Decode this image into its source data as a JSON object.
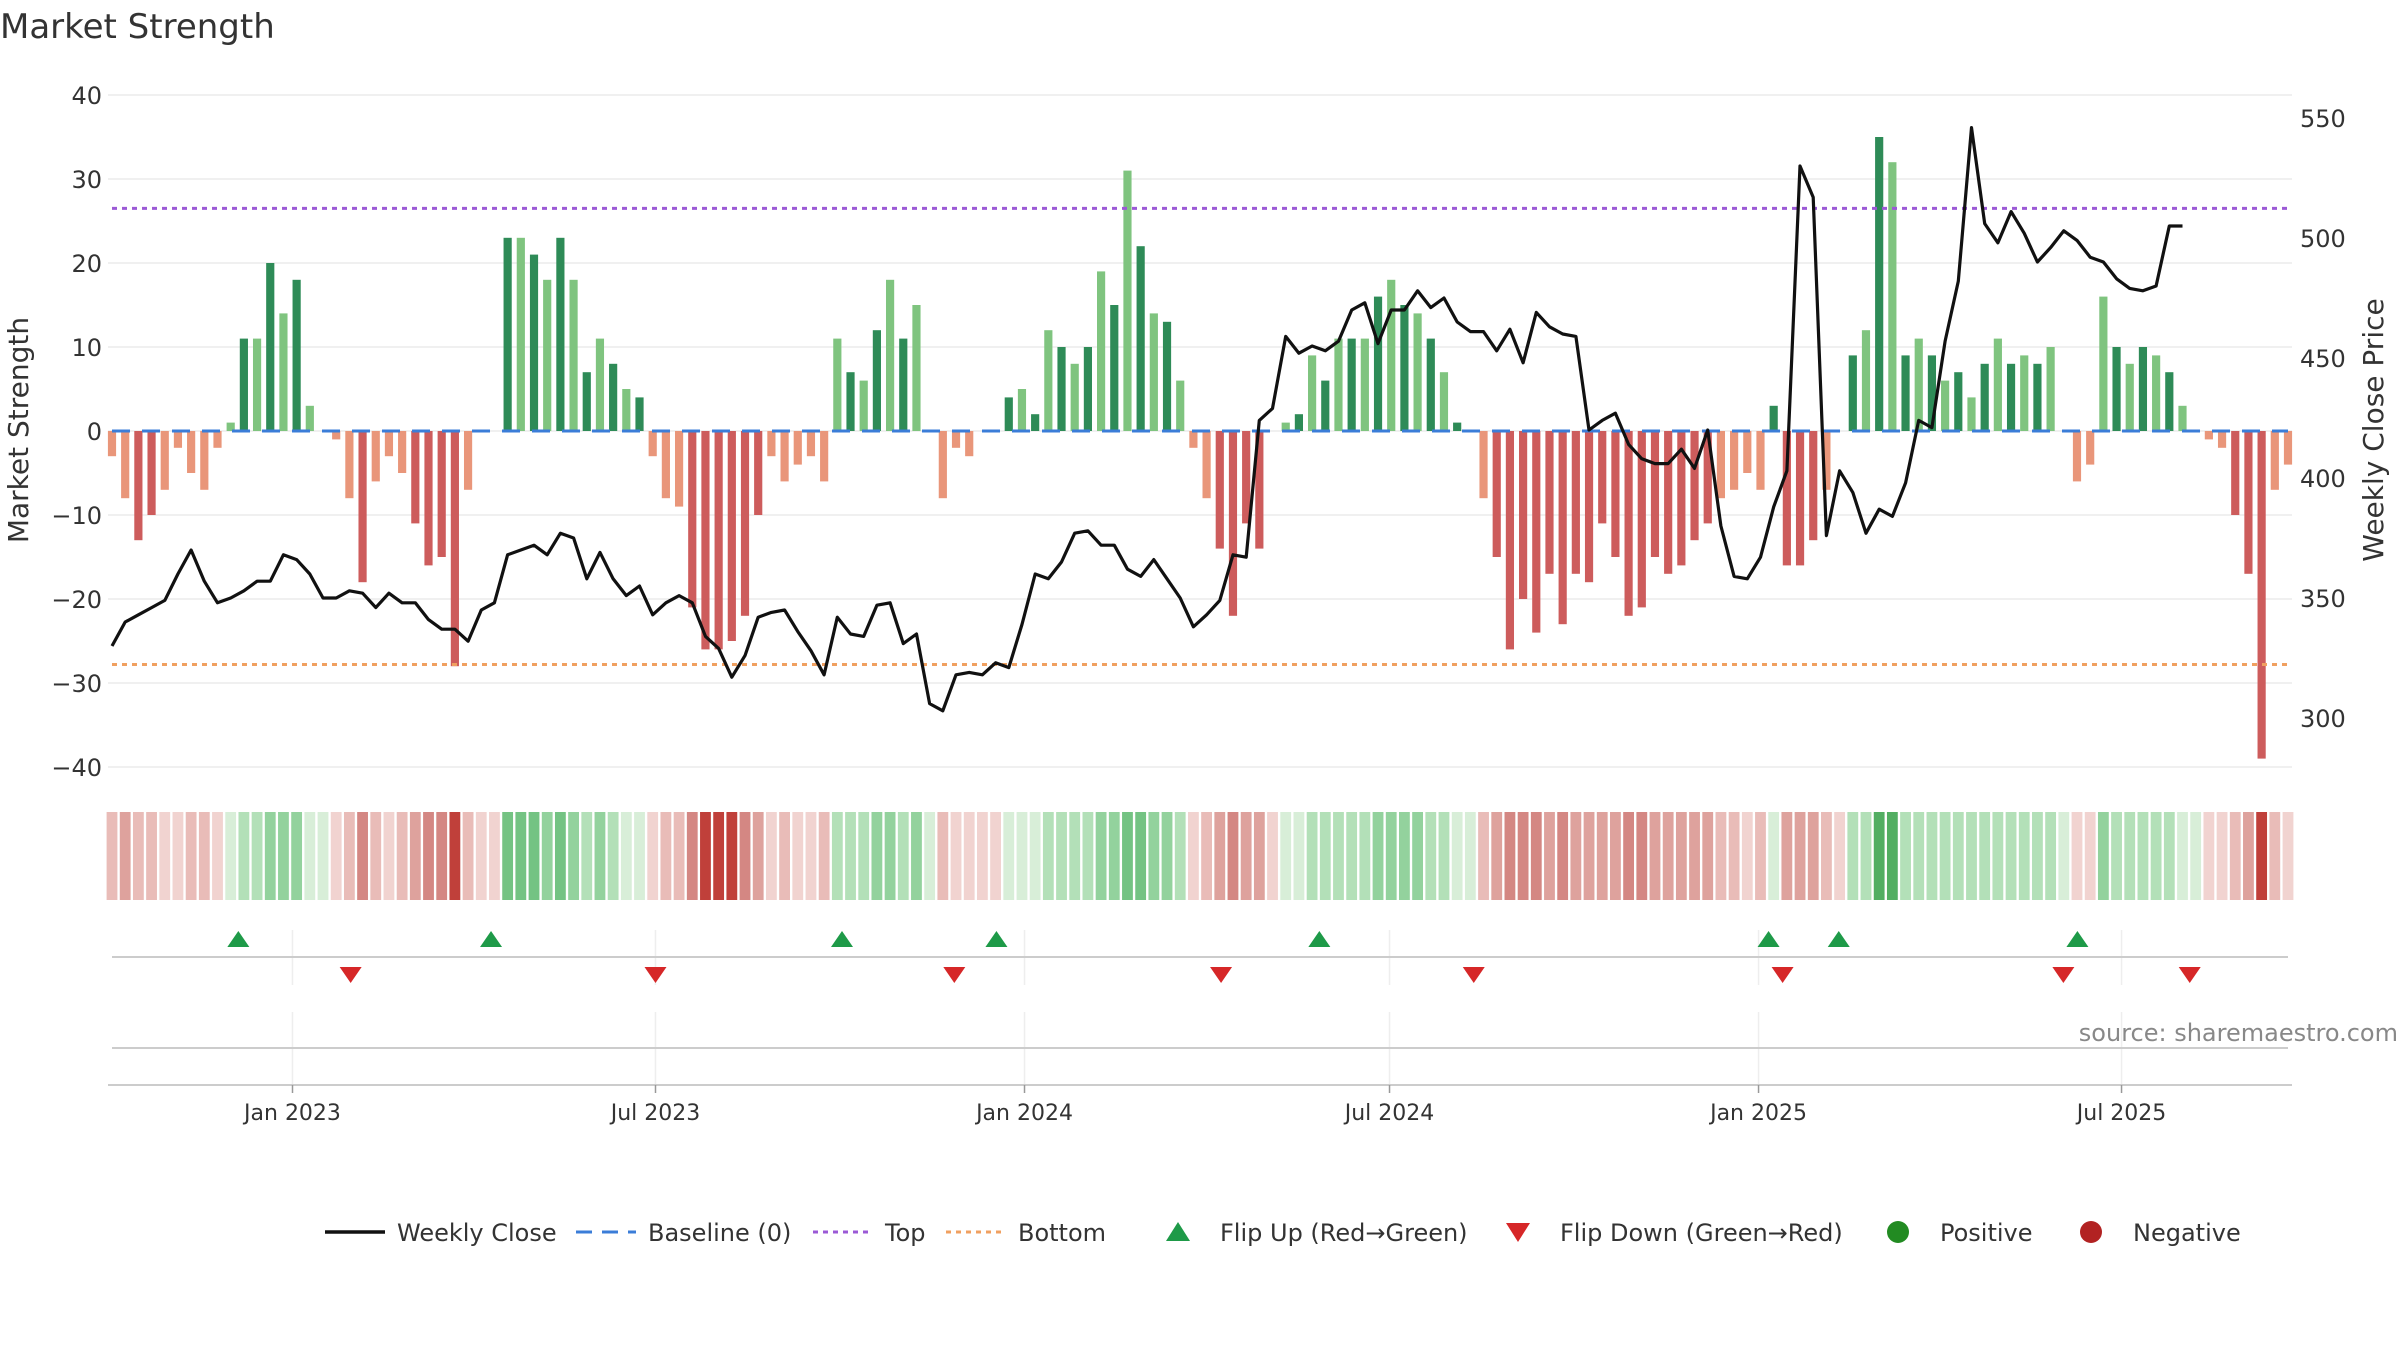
{
  "chart_data": {
    "type": "bar",
    "title": "Market Strength",
    "ylabel_left": "Market Strength",
    "ylabel_right": "Weekly Close Price",
    "source": "source: sharemaestro.com",
    "ylim_left": [
      -40,
      40
    ],
    "yticks_left": [
      "40",
      "30",
      "20",
      "10",
      "0",
      "−10",
      "−20",
      "−30",
      "−40"
    ],
    "ylim_right": [
      275,
      580
    ],
    "yticks_right": [
      "550",
      "500",
      "450",
      "400",
      "350",
      "300"
    ],
    "x_start": "2022-10-03",
    "x_end": "2025-09-22",
    "x_ticks": [
      {
        "date": "2023-01-01",
        "label": "Jan 2023"
      },
      {
        "date": "2023-07-01",
        "label": "Jul 2023"
      },
      {
        "date": "2024-01-01",
        "label": "Jan 2024"
      },
      {
        "date": "2024-07-01",
        "label": "Jul 2024"
      },
      {
        "date": "2025-01-01",
        "label": "Jan 2025"
      },
      {
        "date": "2025-07-01",
        "label": "Jul 2025"
      }
    ],
    "top_line": 26.5,
    "bottom_line": -27.8,
    "grid": true,
    "strength": [
      -3,
      -8,
      -13,
      -10,
      -7,
      -2,
      -5,
      -7,
      -2,
      1,
      11,
      11,
      20,
      14,
      18,
      3,
      0,
      -1,
      -8,
      -18,
      -6,
      -3,
      -5,
      -11,
      -16,
      -15,
      -28,
      -7,
      0,
      0,
      23,
      23,
      21,
      18,
      23,
      18,
      7,
      11,
      8,
      5,
      4,
      -3,
      -8,
      -9,
      -21,
      -26,
      -26,
      -25,
      -22,
      -10,
      -3,
      -6,
      -4,
      -3,
      -6,
      11,
      7,
      6,
      12,
      18,
      11,
      15,
      0,
      -8,
      -2,
      -3,
      0,
      0,
      4,
      5,
      2,
      12,
      10,
      8,
      10,
      19,
      15,
      31,
      22,
      14,
      13,
      6,
      -2,
      -8,
      -14,
      -22,
      -11,
      -14,
      0,
      1,
      2,
      9,
      6,
      11,
      11,
      11,
      16,
      18,
      15,
      14,
      11,
      7,
      1,
      0,
      -8,
      -15,
      -26,
      -20,
      -24,
      -17,
      -23,
      -17,
      -18,
      -11,
      -15,
      -22,
      -21,
      -15,
      -17,
      -16,
      -13,
      -11,
      -8,
      -7,
      -5,
      -7,
      3,
      -16,
      -16,
      -13,
      -7,
      0,
      9,
      12,
      35,
      32,
      9,
      11,
      9,
      6,
      7,
      4,
      8,
      11,
      8,
      9,
      8,
      10,
      0,
      -6,
      -4,
      16,
      10,
      8,
      10,
      9,
      7,
      3,
      0,
      -1,
      -2,
      -10,
      -17,
      -39,
      -7,
      -4
    ],
    "weekly_close": [
      330,
      340,
      343,
      346,
      349,
      360,
      370,
      357,
      348,
      350,
      353,
      357,
      357,
      368,
      366,
      360,
      350,
      350,
      353,
      352,
      346,
      352,
      348,
      348,
      341,
      337,
      337,
      332,
      345,
      348,
      368,
      370,
      372,
      368,
      377,
      375,
      358,
      369,
      358,
      351,
      355,
      343,
      348,
      351,
      348,
      334,
      329,
      317,
      326,
      342,
      344,
      345,
      336,
      328,
      318,
      342,
      335,
      334,
      347,
      348,
      331,
      335,
      306,
      303,
      318,
      319,
      318,
      323,
      321,
      339,
      360,
      358,
      365,
      377,
      378,
      372,
      372,
      362,
      359,
      366,
      358,
      350,
      338,
      343,
      349,
      368,
      367,
      424,
      429,
      459,
      452,
      455,
      453,
      457,
      470,
      473,
      456,
      470,
      470,
      478,
      471,
      475,
      465,
      461,
      461,
      453,
      462,
      448,
      469,
      463,
      460,
      459,
      420,
      424,
      427,
      414,
      408,
      406,
      406,
      412,
      404,
      420,
      380,
      359,
      358,
      367,
      388,
      403,
      530,
      517,
      376,
      403,
      394,
      377,
      387,
      384,
      398,
      424,
      421,
      457,
      482,
      546,
      506,
      498,
      511,
      502,
      490,
      496,
      503,
      499,
      492,
      490,
      483,
      479,
      478,
      480,
      505,
      505
    ],
    "intensity": [
      -2,
      -3,
      -2,
      -2,
      -1,
      -1,
      -2,
      -2,
      -1,
      1,
      2,
      2,
      3,
      3,
      3,
      1,
      0,
      -1,
      -2,
      -4,
      -2,
      -1,
      -2,
      -3,
      -4,
      -4,
      -5,
      -2,
      0,
      0,
      4,
      4,
      4,
      3,
      4,
      3,
      2,
      3,
      2,
      1,
      1,
      -1,
      -2,
      -2,
      -4,
      -5,
      -5,
      -5,
      -4,
      -3,
      -1,
      -2,
      -1,
      -1,
      -2,
      2,
      2,
      2,
      3,
      3,
      2,
      3,
      0,
      -2,
      -1,
      -1,
      0,
      0,
      1,
      1,
      1,
      2,
      2,
      2,
      2,
      3,
      3,
      4,
      4,
      3,
      3,
      2,
      -1,
      -2,
      -3,
      -4,
      -3,
      -3,
      0,
      1,
      1,
      2,
      2,
      2,
      2,
      2,
      3,
      3,
      3,
      3,
      2,
      2,
      1,
      0,
      -2,
      -3,
      -4,
      -4,
      -4,
      -3,
      -4,
      -3,
      -3,
      -3,
      -3,
      -4,
      -4,
      -3,
      -3,
      -3,
      -3,
      -3,
      -2,
      -2,
      -1,
      -2,
      1,
      -3,
      -3,
      -3,
      -2,
      0,
      2,
      2,
      5,
      5,
      2,
      2,
      2,
      2,
      2,
      2,
      2,
      2,
      2,
      2,
      2,
      2,
      0,
      -1,
      -1,
      3,
      2,
      2,
      2,
      2,
      2,
      1,
      0,
      -1,
      -1,
      -2,
      -3,
      -5,
      -2,
      -1
    ],
    "flip_up": [
      "2022-12-05",
      "2023-04-10",
      "2023-10-02",
      "2023-12-18",
      "2024-05-27",
      "2025-01-06",
      "2025-02-10",
      "2025-06-09"
    ],
    "flip_down": [
      "2023-01-30",
      "2023-07-01",
      "2023-11-27",
      "2024-04-08",
      "2024-08-12",
      "2025-01-13",
      "2025-06-02",
      "2025-08-04"
    ],
    "legend": [
      {
        "label": "Weekly Close",
        "kind": "line",
        "color": "#111111"
      },
      {
        "label": "Baseline (0)",
        "kind": "dash",
        "color": "#3b7dd8"
      },
      {
        "label": "Top",
        "kind": "dot",
        "color": "#9b59d6"
      },
      {
        "label": "Bottom",
        "kind": "dot",
        "color": "#f0a060"
      },
      {
        "label": "Flip Up (Red→Green)",
        "kind": "triangle-up",
        "color": "#1e9a48"
      },
      {
        "label": "Flip Down (Green→Red)",
        "kind": "triangle-down",
        "color": "#d62728"
      },
      {
        "label": "Positive",
        "kind": "circle",
        "color": "#228b22"
      },
      {
        "label": "Negative",
        "kind": "circle",
        "color": "#b22222"
      }
    ],
    "colors": {
      "green_dark": "#2e8b57",
      "green_light": "#7fc47f",
      "red_dark": "#cd5c5c",
      "red_light": "#e9967a",
      "top": "#9b59d6",
      "bottom": "#f0a060",
      "baseline": "#3b7dd8",
      "close": "#111111"
    }
  }
}
